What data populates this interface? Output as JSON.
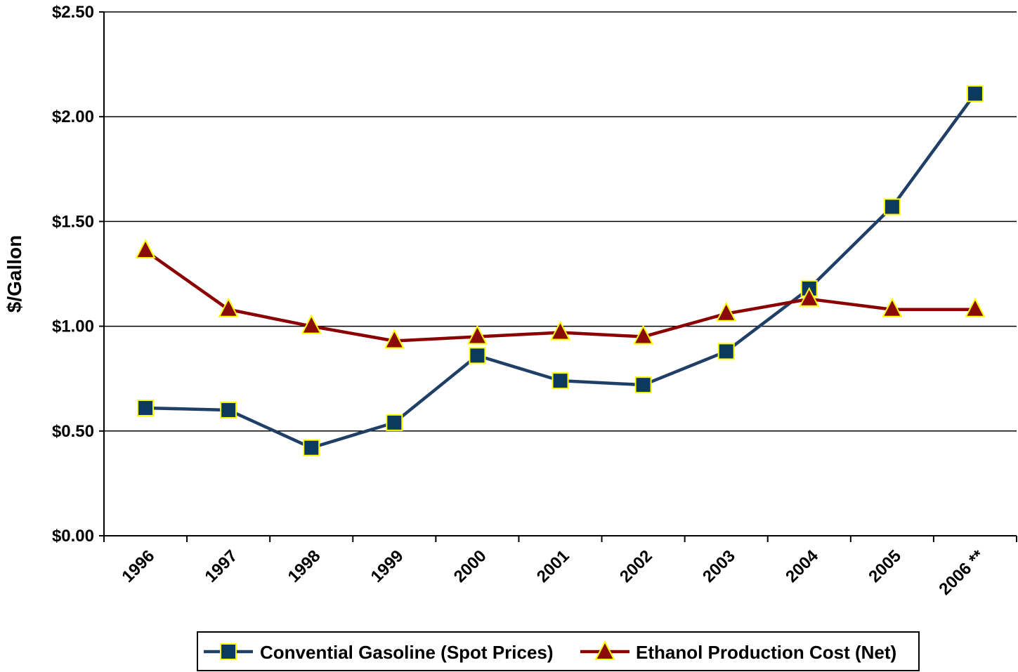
{
  "chart_data": {
    "type": "line",
    "title": "",
    "xlabel": "",
    "ylabel": "$/Gallon",
    "categories": [
      "1996",
      "1997",
      "1998",
      "1999",
      "2000",
      "2001",
      "2002",
      "2003",
      "2004",
      "2005",
      "2006 **"
    ],
    "ylim": [
      0,
      2.5
    ],
    "yticks": [
      0,
      0.5,
      1.0,
      1.5,
      2.0,
      2.5
    ],
    "ytick_labels": [
      "$0.00",
      "$0.50",
      "$1.00",
      "$1.50",
      "$2.00",
      "$2.50"
    ],
    "grid": "horizontal",
    "legend_position": "bottom",
    "series": [
      {
        "name": "Convential Gasoline (Spot Prices)",
        "marker": "square",
        "color": "#1F3F66",
        "marker_fill": "#0B3A5E",
        "marker_edge": "#FFFF00",
        "values": [
          0.61,
          0.6,
          0.42,
          0.54,
          0.86,
          0.74,
          0.72,
          0.88,
          1.18,
          1.57,
          2.11
        ]
      },
      {
        "name": "Ethanol Production Cost (Net)",
        "marker": "triangle",
        "color": "#8B0000",
        "marker_fill": "#8B0A0A",
        "marker_edge": "#FFFF00",
        "values": [
          1.36,
          1.08,
          1.0,
          0.93,
          0.95,
          0.97,
          0.95,
          1.06,
          1.13,
          1.08,
          1.08
        ]
      }
    ]
  }
}
